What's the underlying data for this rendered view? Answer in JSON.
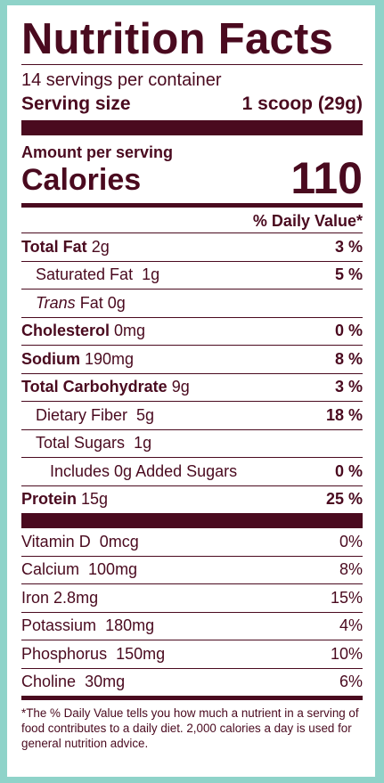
{
  "title": "Nutrition Facts",
  "servings_per_container": "14 servings per container",
  "serving_size_label": "Serving size",
  "serving_size_value": "1 scoop (29g)",
  "amount_per_serving": "Amount per serving",
  "calories_label": "Calories",
  "calories_value": "110",
  "daily_value_header": "% Daily Value*",
  "nutrients": [
    {
      "label": "Total Fat",
      "amount": "2g",
      "dv": "3 %"
    },
    {
      "label": "Saturated Fat",
      "amount": "1g",
      "dv": "5 %"
    },
    {
      "label_italic": "Trans",
      "label": "Fat",
      "amount": "0g",
      "dv": ""
    },
    {
      "label": "Cholesterol",
      "amount": "0mg",
      "dv": "0 %"
    },
    {
      "label": "Sodium",
      "amount": "190mg",
      "dv": "8 %"
    },
    {
      "label": "Total Carbohydrate",
      "amount": "9g",
      "dv": "3 %"
    },
    {
      "label": "Dietary Fiber",
      "amount": "5g",
      "dv": "18 %"
    },
    {
      "label": "Total Sugars",
      "amount": "1g",
      "dv": ""
    },
    {
      "label": "Includes 0g Added Sugars",
      "amount": "",
      "dv": "0 %"
    },
    {
      "label": "Protein",
      "amount": "15g",
      "dv": "25 %"
    }
  ],
  "vitamins": [
    {
      "label": "Vitamin D",
      "amount": "0mcg",
      "dv": "0%"
    },
    {
      "label": "Calcium",
      "amount": "100mg",
      "dv": "8%"
    },
    {
      "label": "Iron",
      "amount": "2.8mg",
      "dv": "15%"
    },
    {
      "label": "Potassium",
      "amount": "180mg",
      "dv": "4%"
    },
    {
      "label": "Phosphorus",
      "amount": "150mg",
      "dv": "10%"
    },
    {
      "label": "Choline",
      "amount": "30mg",
      "dv": "6%"
    }
  ],
  "footnote": "*The % Daily Value tells you how much a nutrient in a serving of food contributes to a daily diet. 2,000 calories a day is used for general nutrition advice.",
  "colors": {
    "ink": "#4a0a1f",
    "background": "#8fd3c9",
    "panel": "#ffffff"
  }
}
